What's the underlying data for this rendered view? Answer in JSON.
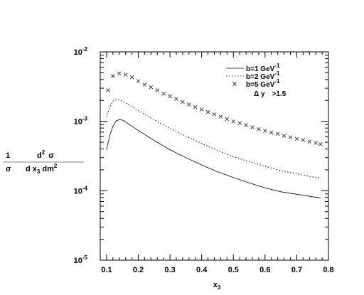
{
  "chart_data": {
    "type": "line",
    "title": "",
    "xlabel": "x",
    "xlabel_sub": "3",
    "ylabel": {
      "left": "1",
      "left_bottom": "σ",
      "top": "d",
      "top_sup": "2",
      "top_sigma": "σ",
      "bottom_d": "d x",
      "bottom_sub": "3",
      "bottom_dm": "dm",
      "bottom_sup": "2"
    },
    "xlim": [
      0.08,
      0.8
    ],
    "ylim": [
      1e-05,
      0.01
    ],
    "yscale": "log",
    "x_ticks": [
      "0.1",
      "0.2",
      "0.3",
      "0.4",
      "0.5",
      "0.6",
      "0.7",
      "0.8"
    ],
    "x_tick_values": [
      0.1,
      0.2,
      0.3,
      0.4,
      0.5,
      0.6,
      0.7,
      0.8
    ],
    "y_ticks": [
      {
        "value": 1e-05,
        "base": "10",
        "exp": "-5"
      },
      {
        "value": 0.0001,
        "base": "10",
        "exp": "-4"
      },
      {
        "value": 0.001,
        "base": "10",
        "exp": "-3"
      },
      {
        "value": 0.01,
        "base": "10",
        "exp": "-2"
      }
    ],
    "legend": {
      "placement": "top-right",
      "annotation_prefix": "Δ y",
      "annotation_suffix": ">1.5"
    },
    "series": [
      {
        "name": "b=1 GeV",
        "name_sup": "-1",
        "style": "solid",
        "x": [
          0.1,
          0.11,
          0.12,
          0.13,
          0.14,
          0.15,
          0.16,
          0.18,
          0.2,
          0.25,
          0.3,
          0.35,
          0.4,
          0.45,
          0.5,
          0.55,
          0.6,
          0.65,
          0.7,
          0.75,
          0.775
        ],
        "y": [
          0.00039,
          0.00062,
          0.00085,
          0.00101,
          0.00106,
          0.00104,
          0.00098,
          0.00085,
          0.00074,
          0.00053,
          0.00039,
          0.0003,
          0.000235,
          0.000188,
          0.000155,
          0.00013,
          0.00011,
          9.65e-05,
          8.9e-05,
          8.2e-05,
          7.9e-05
        ]
      },
      {
        "name": "b=2 GeV",
        "name_sup": "-1",
        "style": "dotted",
        "x": [
          0.1,
          0.11,
          0.12,
          0.13,
          0.14,
          0.15,
          0.16,
          0.18,
          0.2,
          0.25,
          0.3,
          0.35,
          0.4,
          0.45,
          0.5,
          0.55,
          0.6,
          0.65,
          0.7,
          0.75,
          0.775
        ],
        "y": [
          0.00115,
          0.0016,
          0.00195,
          0.00205,
          0.00203,
          0.00195,
          0.00183,
          0.00163,
          0.00143,
          0.00105,
          0.00079,
          0.00061,
          0.00048,
          0.00038,
          0.00031,
          0.000262,
          0.000225,
          0.000195,
          0.000175,
          0.000158,
          0.000152
        ]
      },
      {
        "name": "b=5 GeV",
        "name_sup": "-1",
        "style": "x-marker",
        "x": [
          0.105,
          0.12,
          0.14,
          0.16,
          0.18,
          0.2,
          0.22,
          0.24,
          0.26,
          0.28,
          0.3,
          0.32,
          0.34,
          0.36,
          0.38,
          0.4,
          0.42,
          0.44,
          0.46,
          0.48,
          0.5,
          0.52,
          0.54,
          0.56,
          0.58,
          0.6,
          0.62,
          0.64,
          0.66,
          0.68,
          0.7,
          0.72,
          0.74,
          0.76,
          0.775
        ],
        "y": [
          0.0028,
          0.0045,
          0.0049,
          0.0047,
          0.0043,
          0.0038,
          0.0034,
          0.0031,
          0.0028,
          0.0025,
          0.0023,
          0.0021,
          0.0019,
          0.00175,
          0.0016,
          0.00148,
          0.00136,
          0.00126,
          0.00117,
          0.00108,
          0.001,
          0.00094,
          0.00088,
          0.00082,
          0.00077,
          0.00073,
          0.00069,
          0.00066,
          0.00062,
          0.00059,
          0.00056,
          0.00054,
          0.00051,
          0.00049,
          0.00047
        ]
      }
    ]
  }
}
